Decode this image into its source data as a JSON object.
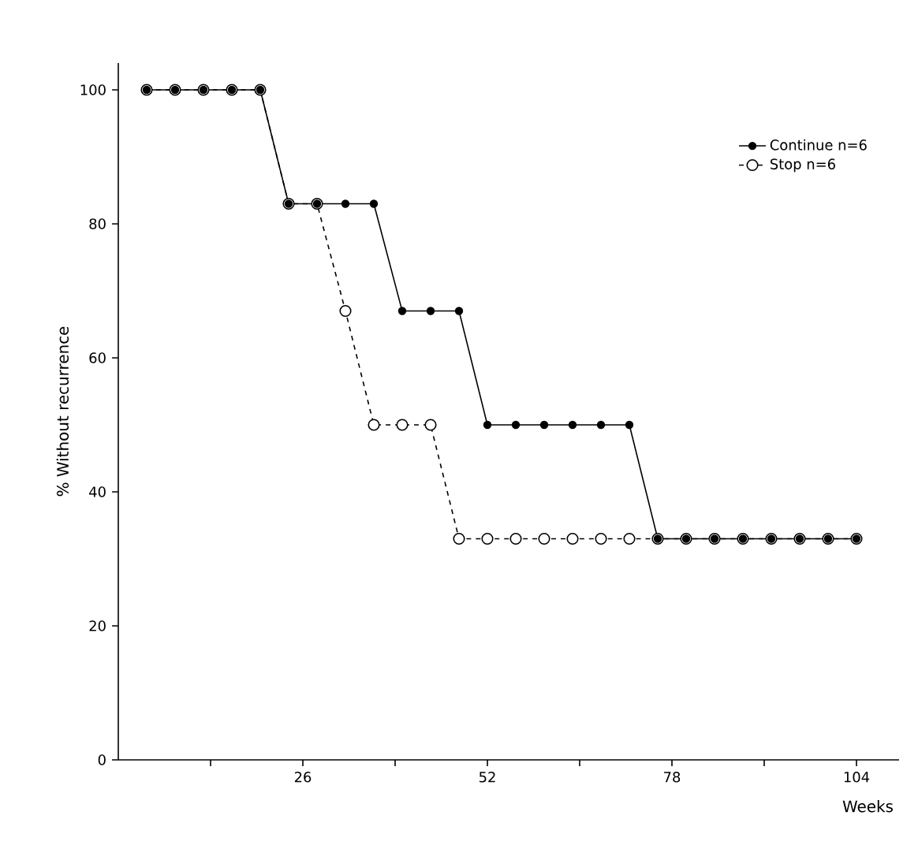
{
  "chart_data": {
    "type": "line",
    "xlabel": "Weeks",
    "ylabel": "% Without recurrence",
    "x": [
      4,
      8,
      12,
      16,
      20,
      24,
      28,
      32,
      36,
      40,
      44,
      48,
      52,
      56,
      60,
      64,
      68,
      72,
      76,
      80,
      84,
      88,
      92,
      96,
      100,
      104
    ],
    "series": [
      {
        "name": "Continue n=6",
        "color": "#000000",
        "line_style": "solid",
        "values": [
          100,
          100,
          100,
          100,
          100,
          83,
          83,
          83,
          83,
          67,
          67,
          67,
          50,
          50,
          50,
          50,
          50,
          50,
          33,
          33,
          33,
          33,
          33,
          33,
          33,
          33
        ]
      },
      {
        "name": "Stop n=6",
        "color": "#000000",
        "line_style": "dashed",
        "values": [
          100,
          100,
          100,
          100,
          100,
          83,
          83,
          67,
          50,
          50,
          50,
          33,
          33,
          33,
          33,
          33,
          33,
          33,
          33,
          33,
          33,
          33,
          33,
          33,
          33,
          33
        ]
      }
    ],
    "xlim": [
      0,
      110
    ],
    "ylim": [
      0,
      104
    ],
    "xticks": [
      {
        "value": 13,
        "label": null
      },
      26,
      {
        "value": 39,
        "label": null
      },
      52,
      {
        "value": 65,
        "label": null
      },
      78,
      {
        "value": 91,
        "label": null
      },
      104
    ],
    "yticks": [
      0,
      20,
      40,
      60,
      80,
      100
    ],
    "grid": false,
    "legend": "top right",
    "marker": "circle"
  }
}
